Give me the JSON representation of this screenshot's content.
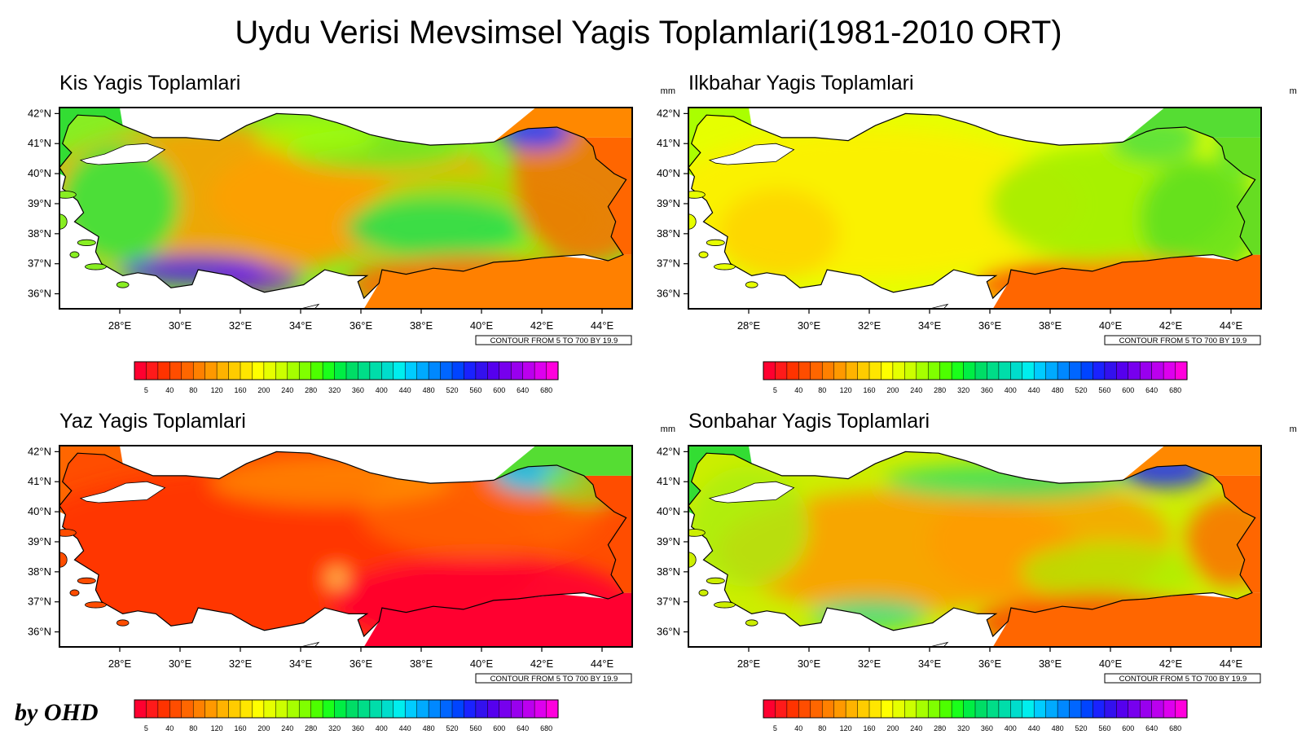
{
  "title": "Uydu Verisi Mevsimsel Yagis Toplamlari(1981-2010 ORT)",
  "signature": "by OHD",
  "panels": [
    {
      "title": "Kis Yagis Toplamlari",
      "unit": "mm",
      "note": "CONTOUR FROM 5 TO 700 BY 19.9"
    },
    {
      "title": "Ilkbahar Yagis Toplamlari",
      "unit": "mm",
      "note": "CONTOUR FROM 5 TO 700 BY 19.9"
    },
    {
      "title": "Yaz Yagis Toplamlari",
      "unit": "mm",
      "note": "CONTOUR FROM 5 TO 700 BY 19.9"
    },
    {
      "title": "Sonbahar Yagis Toplamlari",
      "unit": "mm",
      "note": "CONTOUR FROM 5 TO 700 BY 19.9"
    }
  ],
  "lat_ticks": [
    "42°N",
    "41°N",
    "40°N",
    "39°N",
    "38°N",
    "37°N",
    "36°N"
  ],
  "lon_ticks": [
    "28°E",
    "30°E",
    "32°E",
    "34°E",
    "36°E",
    "38°E",
    "40°E",
    "42°E",
    "44°E"
  ],
  "colorbar_labels": [
    "5",
    "40",
    "80",
    "120",
    "160",
    "200",
    "240",
    "280",
    "320",
    "360",
    "400",
    "440",
    "480",
    "520",
    "560",
    "600",
    "640",
    "680"
  ],
  "colorbar_colors": [
    "#ff0030",
    "#ff1a1a",
    "#ff3300",
    "#ff4d00",
    "#ff6600",
    "#ff8000",
    "#ff9900",
    "#ffb300",
    "#ffcc00",
    "#ffe600",
    "#ffff00",
    "#e6ff00",
    "#ccff00",
    "#a6ff00",
    "#80ff00",
    "#4dff00",
    "#1aff1a",
    "#00ee44",
    "#00dd66",
    "#00dd88",
    "#00ddaa",
    "#00ddcc",
    "#00eeee",
    "#00ccff",
    "#00aaff",
    "#0088ff",
    "#0066ff",
    "#0044ff",
    "#1a22ff",
    "#3311ee",
    "#5500ee",
    "#7700ee",
    "#9900ee",
    "#bb00ee",
    "#dd00ee",
    "#ff00dd"
  ]
}
